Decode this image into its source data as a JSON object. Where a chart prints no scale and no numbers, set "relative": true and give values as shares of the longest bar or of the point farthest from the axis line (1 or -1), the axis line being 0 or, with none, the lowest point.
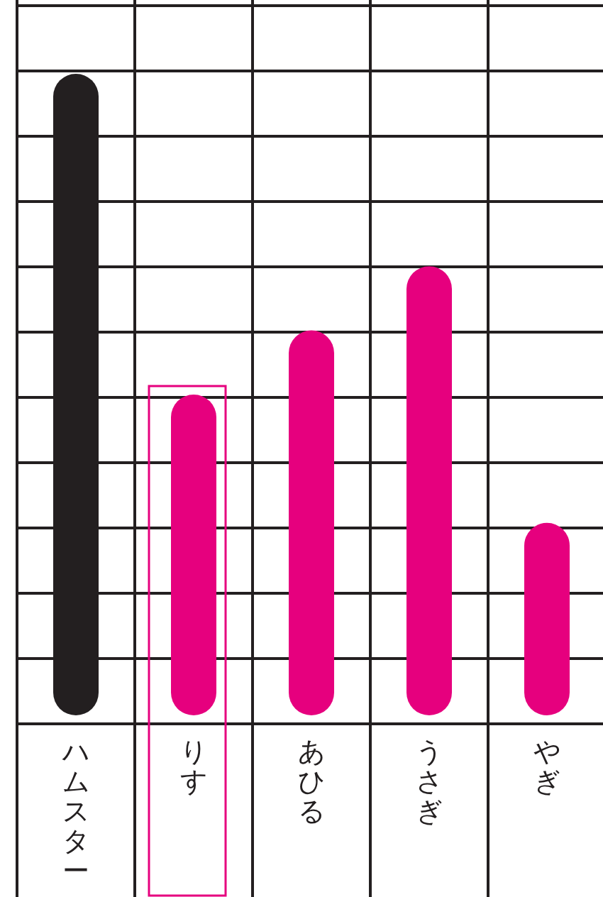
{
  "chart_data": {
    "type": "bar",
    "relative": true,
    "grid": true,
    "categories": [
      "ハムスター",
      "りす",
      "あひる",
      "うさぎ",
      "やぎ"
    ],
    "values": [
      1,
      0.5,
      0.6,
      0.7,
      0.3
    ],
    "colors": [
      "#231f20",
      "#e6007e",
      "#e6007e",
      "#e6007e",
      "#e6007e"
    ]
  }
}
